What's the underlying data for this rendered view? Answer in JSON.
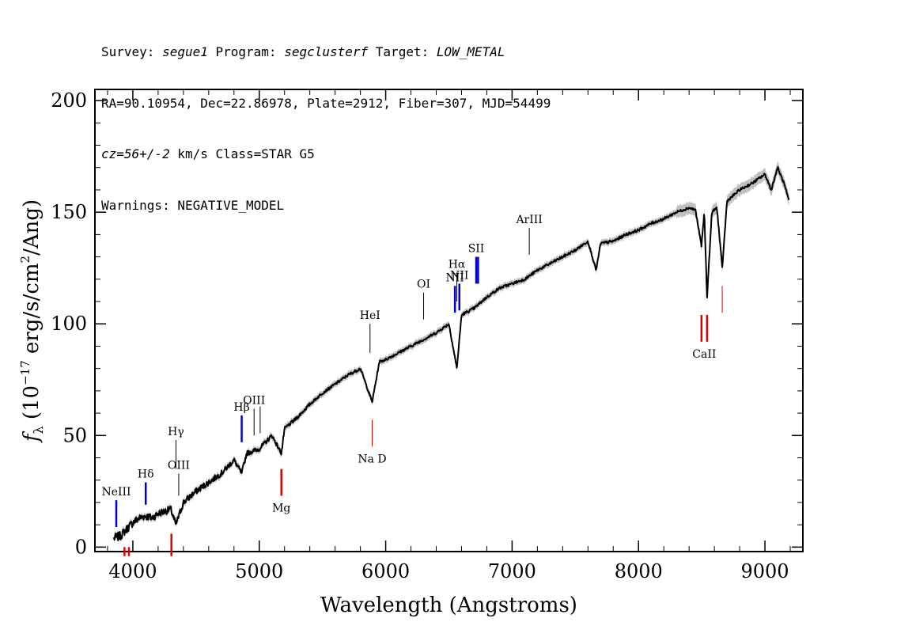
{
  "header": {
    "line1": {
      "survey_label": "Survey: ",
      "survey": "segue1",
      "program_label": " Program: ",
      "program": "segclusterf",
      "target_label": " Target: ",
      "target": "LOW_METAL"
    },
    "line2": "RA=90.10954, Dec=22.86978, Plate=2912, Fiber=307, MJD=54499",
    "line3": {
      "cz": "cz=56+/-2",
      "rest": " km/s Class=STAR G5"
    },
    "line4": "Warnings: NEGATIVE_MODEL"
  },
  "colors": {
    "emission": "#0000cc",
    "absorption": "#dd0000",
    "spectrum": "#000000",
    "error": "#b0b0b0",
    "thin": "#000000"
  },
  "chart_data": {
    "type": "line",
    "xlabel": "Wavelength (Angstroms)",
    "ylabel": "fλ (10^-17 erg/s/cm^2/Ang)",
    "ylabel_parts": {
      "f": "f",
      "sub": "λ",
      "pre": " (10",
      "exp1": "−17",
      "mid": " erg/s/cm",
      "exp2": "2",
      "post": "/Ang)"
    },
    "xlim": [
      3700,
      9300
    ],
    "ylim": [
      -2,
      205
    ],
    "xticks": [
      4000,
      5000,
      6000,
      7000,
      8000,
      9000
    ],
    "xtick_labels": [
      "4000",
      "5000",
      "6000",
      "7000",
      "8000",
      "9000"
    ],
    "yticks": [
      0,
      50,
      100,
      150,
      200
    ],
    "ytick_labels": [
      "0",
      "50",
      "100",
      "150",
      "200"
    ],
    "series": [
      {
        "x": [
          3850,
          3900,
          3950,
          4000,
          4050,
          4100,
          4150,
          4200,
          4300,
          4340,
          4400,
          4500,
          4600,
          4700,
          4800,
          4861,
          4900,
          5000,
          5100,
          5175,
          5200,
          5300,
          5400,
          5500,
          5600,
          5700,
          5800,
          5893,
          5950,
          6000,
          6100,
          6200,
          6300,
          6400,
          6500,
          6563,
          6600,
          6700,
          6800,
          6900,
          7000,
          7100,
          7200,
          7300,
          7400,
          7500,
          7600,
          7665,
          7700,
          7800,
          7900,
          8000,
          8100,
          8200,
          8300,
          8400,
          8450,
          8498,
          8520,
          8542,
          8580,
          8620,
          8662,
          8700,
          8800,
          8900,
          9000,
          9050,
          9100,
          9150,
          9190
        ],
        "y": [
          4,
          5,
          8,
          11,
          13,
          14,
          13,
          15,
          17,
          10,
          20,
          25,
          29,
          33,
          39,
          33,
          42,
          44,
          50,
          42,
          53,
          58,
          64,
          69,
          73,
          77,
          80,
          65,
          83,
          84,
          87,
          90,
          93,
          96,
          100,
          80,
          104,
          107,
          112,
          116,
          118,
          120,
          124,
          127,
          130,
          133,
          137,
          124,
          136,
          137,
          140,
          142,
          145,
          147,
          150,
          152,
          151,
          135,
          150,
          112,
          150,
          152,
          125,
          155,
          160,
          163,
          167,
          160,
          170,
          163,
          155
        ]
      }
    ],
    "lines": [
      {
        "label": "NeIII",
        "wave": 3869,
        "kind": "emission",
        "y0": 9,
        "y1": 21
      },
      {
        "label": "Hδ",
        "wave": 4102,
        "kind": "emission",
        "y0": 19,
        "y1": 29
      },
      {
        "label": "Hγ",
        "wave": 4341,
        "kind": "thin",
        "y0": 35,
        "y1": 48
      },
      {
        "label": "OIII",
        "wave": 4363,
        "kind": "thin",
        "y0": 23,
        "y1": 33
      },
      {
        "label": "Hβ",
        "wave": 4861,
        "kind": "emission",
        "y0": 47,
        "y1": 59
      },
      {
        "label": "OIII",
        "wave": 4959,
        "kind": "thin",
        "y0": 50,
        "y1": 62
      },
      {
        "label": "",
        "wave": 5007,
        "kind": "thin",
        "y0": 51,
        "y1": 63
      },
      {
        "label": "HeI",
        "wave": 5876,
        "kind": "thin",
        "y0": 87,
        "y1": 100
      },
      {
        "label": "OI",
        "wave": 6300,
        "kind": "thin",
        "y0": 102,
        "y1": 114
      },
      {
        "label": "NII",
        "wave": 6548,
        "kind": "emission",
        "y0": 105,
        "y1": 117
      },
      {
        "label": "Hα",
        "wave": 6563,
        "kind": "thin",
        "y0": 110,
        "y1": 123
      },
      {
        "label": "NII",
        "wave": 6583,
        "kind": "emission",
        "y0": 106,
        "y1": 118
      },
      {
        "label": "SII",
        "wave": 6716,
        "kind": "emission",
        "y0": 118,
        "y1": 130
      },
      {
        "label": "",
        "wave": 6731,
        "kind": "emission",
        "y0": 118,
        "y1": 130
      },
      {
        "label": "ArIII",
        "wave": 7136,
        "kind": "thin",
        "y0": 131,
        "y1": 143
      },
      {
        "label": "Na D",
        "wave": 5893,
        "kind": "absorption-thin",
        "y0": 45,
        "y1": 57
      },
      {
        "label": "Mg",
        "wave": 5175,
        "kind": "absorption",
        "y0": 23,
        "y1": 35
      },
      {
        "label": "",
        "wave": 4305,
        "kind": "absorption",
        "y0": -4,
        "y1": 6
      },
      {
        "label": "",
        "wave": 3934,
        "kind": "absorption",
        "y0": -4,
        "y1": 0
      },
      {
        "label": "",
        "wave": 3969,
        "kind": "absorption",
        "y0": -4,
        "y1": 0
      },
      {
        "label": "CaII",
        "wave": 8498,
        "kind": "absorption",
        "y0": 92,
        "y1": 104
      },
      {
        "label": "",
        "wave": 8542,
        "kind": "absorption",
        "y0": 92,
        "y1": 104
      },
      {
        "label": "",
        "wave": 8662,
        "kind": "absorption-thin",
        "y0": 105,
        "y1": 117
      }
    ],
    "grid": false,
    "legend": "none"
  }
}
